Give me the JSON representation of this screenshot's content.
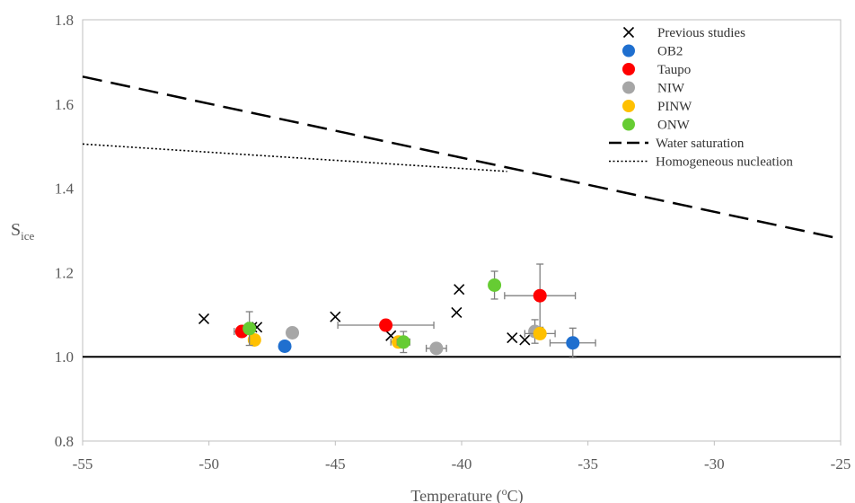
{
  "chart_data": {
    "type": "scatter",
    "title": "",
    "xlabel_main": "Temperature (",
    "xlabel_sup": "o",
    "xlabel_tail": "C)",
    "ylabel_main": "S",
    "ylabel_sub": "ice",
    "xlim": [
      -55,
      -25
    ],
    "ylim": [
      0.8,
      1.8
    ],
    "xticks": [
      -55,
      -50,
      -45,
      -40,
      -35,
      -30,
      -25
    ],
    "xtick_labels": [
      "-55",
      "-50",
      "-45",
      "-40",
      "-35",
      "-30",
      "-25"
    ],
    "yticks": [
      0.8,
      1.0,
      1.2,
      1.4,
      1.6,
      1.8
    ],
    "ytick_labels": [
      "0.8",
      "1.0",
      "1.2",
      "1.4",
      "1.6",
      "1.8"
    ],
    "grid": false,
    "legend_position": "top-right",
    "series": [
      {
        "name": "Previous studies",
        "marker": "cross",
        "color": "#000000",
        "points": [
          {
            "x": -50.2,
            "y": 1.09
          },
          {
            "x": -48.3,
            "y": 1.07
          },
          {
            "x": -48.1,
            "y": 1.07
          },
          {
            "x": -45.0,
            "y": 1.095
          },
          {
            "x": -42.8,
            "y": 1.05
          },
          {
            "x": -40.1,
            "y": 1.16
          },
          {
            "x": -40.2,
            "y": 1.105
          },
          {
            "x": -38.0,
            "y": 1.045
          },
          {
            "x": -37.5,
            "y": 1.04
          }
        ]
      },
      {
        "name": "OB2",
        "marker": "circle",
        "color": "#1f6fcf",
        "points": [
          {
            "x": -47.0,
            "y": 1.025
          },
          {
            "x": -35.6,
            "y": 1.033,
            "xerr": 0.9,
            "yerr": 0.035
          }
        ]
      },
      {
        "name": "Taupo",
        "marker": "circle",
        "color": "#ff0000",
        "points": [
          {
            "x": -48.7,
            "y": 1.06,
            "xerr": 0.3
          },
          {
            "x": -43.0,
            "y": 1.075,
            "xerr": 1.9
          },
          {
            "x": -36.9,
            "y": 1.145,
            "xerr": 1.4,
            "yerr": 0.075
          }
        ]
      },
      {
        "name": "NIW",
        "marker": "circle",
        "color": "#a6a6a6",
        "points": [
          {
            "x": -46.7,
            "y": 1.057
          },
          {
            "x": -41.0,
            "y": 1.02,
            "xerr": 0.4
          },
          {
            "x": -37.1,
            "y": 1.06,
            "yerr": 0.028
          }
        ]
      },
      {
        "name": "PINW",
        "marker": "circle",
        "color": "#ffc000",
        "points": [
          {
            "x": -48.2,
            "y": 1.04
          },
          {
            "x": -42.5,
            "y": 1.035,
            "xerr": 0.3
          },
          {
            "x": -36.9,
            "y": 1.055,
            "xerr": 0.6
          }
        ]
      },
      {
        "name": "ONW",
        "marker": "circle",
        "color": "#66cc33",
        "points": [
          {
            "x": -48.4,
            "y": 1.067,
            "yerr": 0.04
          },
          {
            "x": -42.3,
            "y": 1.035,
            "xerr": 0.25,
            "yerr": 0.025
          },
          {
            "x": -38.7,
            "y": 1.17,
            "xerr": 0.2,
            "yerr": 0.033
          }
        ]
      },
      {
        "name": "Water saturation",
        "marker": "line",
        "style": "dashed",
        "color": "#000000",
        "points": [
          {
            "x": -55,
            "y": 1.665
          },
          {
            "x": -25,
            "y": 1.28
          }
        ]
      },
      {
        "name": "Homogeneous nucleation",
        "marker": "line",
        "style": "dotted",
        "color": "#000000",
        "points": [
          {
            "x": -55,
            "y": 1.505
          },
          {
            "x": -38.2,
            "y": 1.44
          }
        ]
      }
    ],
    "reference_line": {
      "y": 1.0,
      "color": "#000000"
    }
  }
}
